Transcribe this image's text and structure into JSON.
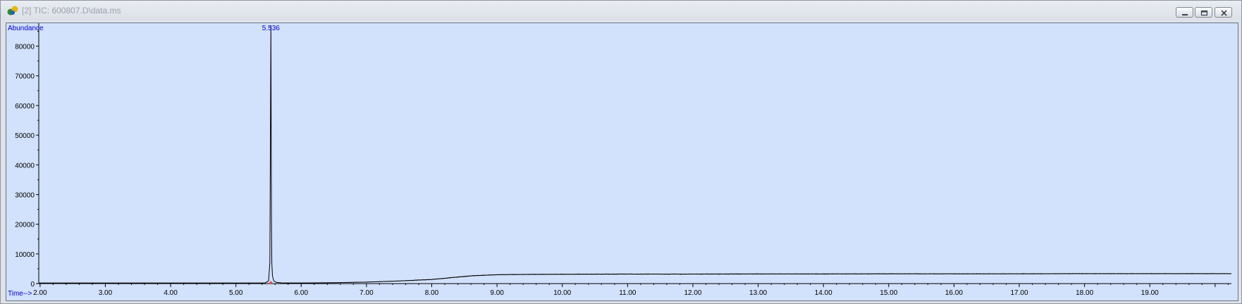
{
  "window": {
    "title": "[2] TIC: 600807.D\\data.ms",
    "app_icon": "chromatogram-app-icon",
    "controls": [
      "minimize-icon",
      "restore-icon",
      "close-icon"
    ]
  },
  "colors": {
    "plot_background": "#d2e1fc",
    "trace": "#000000",
    "label_text": "#0000cc",
    "axis": "#000000",
    "window_chrome": "#dfe3e9"
  },
  "chart_data": {
    "type": "line",
    "title": "",
    "xlabel": "Time-->",
    "ylabel": "Abundance",
    "xlim": [
      1.98,
      20.25
    ],
    "ylim": [
      0,
      87000
    ],
    "xticks": [
      "2.00",
      "3.00",
      "4.00",
      "5.00",
      "6.00",
      "7.00",
      "8.00",
      "9.00",
      "10.00",
      "11.00",
      "12.00",
      "13.00",
      "14.00",
      "15.00",
      "16.00",
      "17.00",
      "18.00",
      "19.00"
    ],
    "yticks": [
      "0",
      "10000",
      "20000",
      "30000",
      "40000",
      "50000",
      "60000",
      "70000",
      "80000"
    ],
    "grid": false,
    "peak_labels": [
      {
        "x": 5.536,
        "label": "5.536"
      }
    ],
    "series": [
      {
        "x": [
          1.98,
          3.0,
          4.0,
          5.0,
          5.45,
          5.5,
          5.52,
          5.53,
          5.536,
          5.54,
          5.545,
          5.55,
          5.56,
          5.58,
          5.62,
          5.7,
          6.0,
          6.5,
          7.0,
          7.5,
          8.0,
          8.3,
          8.6,
          9.0,
          9.5,
          10.0,
          11.0,
          12.0,
          13.0,
          14.0,
          15.0,
          16.0,
          17.0,
          18.0,
          19.0,
          20.25
        ],
        "y": [
          200,
          200,
          200,
          200,
          250,
          900,
          7000,
          56000,
          87000,
          54000,
          20000,
          7000,
          2500,
          900,
          400,
          250,
          200,
          300,
          500,
          900,
          1400,
          2000,
          2600,
          3000,
          3100,
          3150,
          3200,
          3200,
          3250,
          3250,
          3300,
          3300,
          3300,
          3350,
          3350,
          3350
        ]
      }
    ]
  }
}
